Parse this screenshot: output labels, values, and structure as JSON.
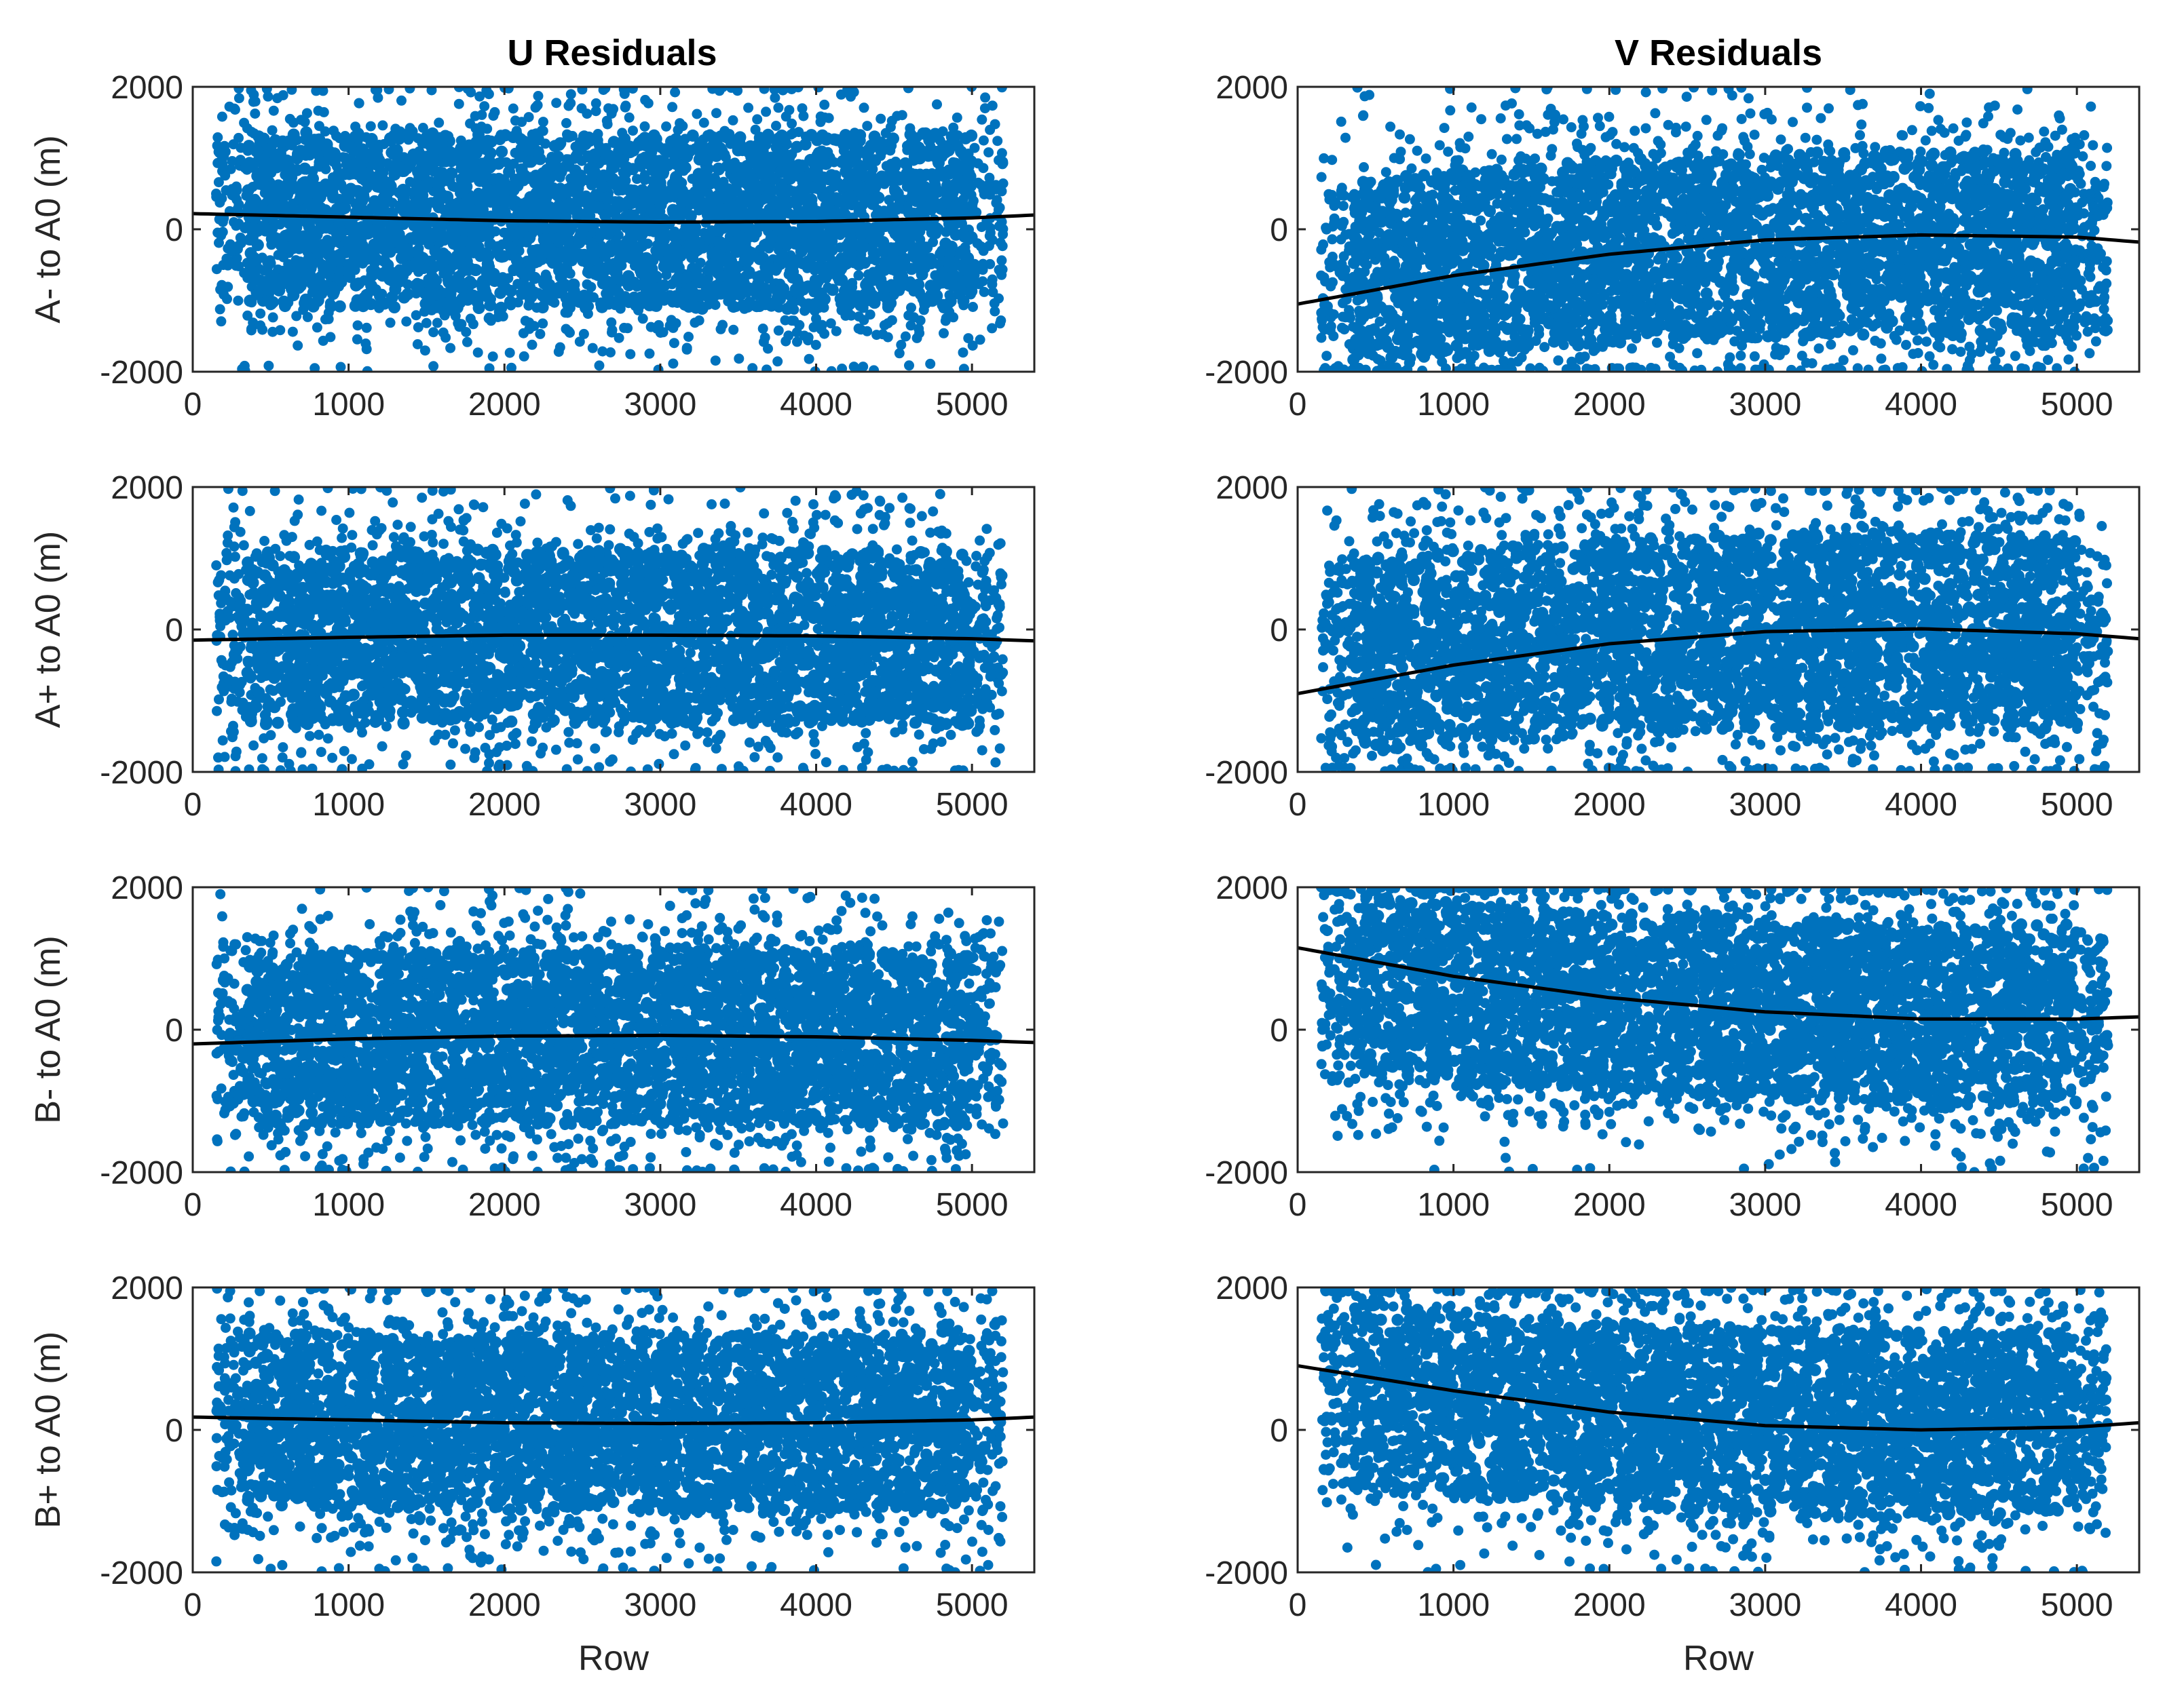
{
  "figure": {
    "col_titles": [
      "U Residuals",
      "V Residuals"
    ],
    "row_labels": [
      "A- to A0 (m)",
      "A+ to A0 (m)",
      "B- to A0 (m)",
      "B+ to A0 (m)"
    ],
    "xlabel": "Row"
  },
  "colors": {
    "points": "#0072BD",
    "fit_line": "#000000",
    "axes": "#262626"
  },
  "chart_data": [
    {
      "type": "scatter",
      "title": "U Residuals",
      "ylabel": "A- to A0 (m)",
      "xlabel": "",
      "xlim": [
        0,
        5400
      ],
      "ylim": [
        -2000,
        2000
      ],
      "xticks": [
        0,
        1000,
        2000,
        3000,
        4000,
        5000
      ],
      "yticks": [
        -2000,
        0,
        2000
      ],
      "x_range": [
        150,
        5200
      ],
      "scatter_band": {
        "center": 100,
        "half_width": 1750
      },
      "fit_line": {
        "x": [
          0,
          1000,
          2000,
          3000,
          4000,
          5000,
          5400
        ],
        "y": [
          220,
          170,
          120,
          100,
          110,
          160,
          200
        ]
      }
    },
    {
      "type": "scatter",
      "title": "V Residuals",
      "ylabel": "",
      "xlabel": "",
      "xlim": [
        0,
        5400
      ],
      "ylim": [
        -2000,
        2000
      ],
      "xticks": [
        0,
        1000,
        2000,
        3000,
        4000,
        5000
      ],
      "yticks": [
        -2000,
        0,
        2000
      ],
      "x_range": [
        150,
        5200
      ],
      "scatter_band": {
        "center": -300,
        "half_width": 1850
      },
      "fit_line": {
        "x": [
          0,
          1000,
          2000,
          3000,
          4000,
          5000,
          5400
        ],
        "y": [
          -1050,
          -650,
          -350,
          -150,
          -80,
          -110,
          -180
        ]
      }
    },
    {
      "type": "scatter",
      "title": "",
      "ylabel": "A+ to A0 (m)",
      "xlabel": "",
      "xlim": [
        0,
        5400
      ],
      "ylim": [
        -2000,
        2000
      ],
      "xticks": [
        0,
        1000,
        2000,
        3000,
        4000,
        5000
      ],
      "yticks": [
        -2000,
        0,
        2000
      ],
      "x_range": [
        150,
        5200
      ],
      "scatter_band": {
        "center": -100,
        "half_width": 1750
      },
      "fit_line": {
        "x": [
          0,
          1000,
          2000,
          3000,
          4000,
          5000,
          5400
        ],
        "y": [
          -150,
          -110,
          -80,
          -80,
          -90,
          -130,
          -160
        ]
      }
    },
    {
      "type": "scatter",
      "title": "",
      "ylabel": "",
      "xlabel": "",
      "xlim": [
        0,
        5400
      ],
      "ylim": [
        -2000,
        2000
      ],
      "xticks": [
        0,
        1000,
        2000,
        3000,
        4000,
        5000
      ],
      "yticks": [
        -2000,
        0,
        2000
      ],
      "x_range": [
        150,
        5200
      ],
      "scatter_band": {
        "center": 0,
        "half_width": 1950
      },
      "fit_line": {
        "x": [
          0,
          1000,
          2000,
          3000,
          4000,
          5000,
          5400
        ],
        "y": [
          -900,
          -500,
          -200,
          -30,
          10,
          -60,
          -130
        ]
      }
    },
    {
      "type": "scatter",
      "title": "",
      "ylabel": "B- to A0 (m)",
      "xlabel": "",
      "xlim": [
        0,
        5400
      ],
      "ylim": [
        -2000,
        2000
      ],
      "xticks": [
        0,
        1000,
        2000,
        3000,
        4000,
        5000
      ],
      "yticks": [
        -2000,
        0,
        2000
      ],
      "x_range": [
        150,
        5200
      ],
      "scatter_band": {
        "center": -100,
        "half_width": 1750
      },
      "fit_line": {
        "x": [
          0,
          1000,
          2000,
          3000,
          4000,
          5000,
          5400
        ],
        "y": [
          -200,
          -130,
          -90,
          -80,
          -100,
          -150,
          -180
        ]
      }
    },
    {
      "type": "scatter",
      "title": "",
      "ylabel": "",
      "xlabel": "",
      "xlim": [
        0,
        5400
      ],
      "ylim": [
        -2000,
        2000
      ],
      "xticks": [
        0,
        1000,
        2000,
        3000,
        4000,
        5000
      ],
      "yticks": [
        -2000,
        0,
        2000
      ],
      "x_range": [
        150,
        5200
      ],
      "scatter_band": {
        "center": 300,
        "half_width": 1800
      },
      "fit_line": {
        "x": [
          0,
          1000,
          2000,
          3000,
          4000,
          5000,
          5400
        ],
        "y": [
          1150,
          750,
          450,
          250,
          150,
          150,
          180
        ]
      }
    },
    {
      "type": "scatter",
      "title": "",
      "ylabel": "B+ to A0 (m)",
      "xlabel": "Row",
      "xlim": [
        0,
        5400
      ],
      "ylim": [
        -2000,
        2000
      ],
      "xticks": [
        0,
        1000,
        2000,
        3000,
        4000,
        5000
      ],
      "yticks": [
        -2000,
        0,
        2000
      ],
      "x_range": [
        150,
        5200
      ],
      "scatter_band": {
        "center": 100,
        "half_width": 1750
      },
      "fit_line": {
        "x": [
          0,
          1000,
          2000,
          3000,
          4000,
          5000,
          5400
        ],
        "y": [
          180,
          140,
          100,
          90,
          100,
          140,
          180
        ]
      }
    },
    {
      "type": "scatter",
      "title": "",
      "ylabel": "",
      "xlabel": "Row",
      "xlim": [
        0,
        5400
      ],
      "ylim": [
        -2000,
        2000
      ],
      "xticks": [
        0,
        1000,
        2000,
        3000,
        4000,
        5000
      ],
      "yticks": [
        -2000,
        0,
        2000
      ],
      "x_range": [
        150,
        5200
      ],
      "scatter_band": {
        "center": 200,
        "half_width": 1850
      },
      "fit_line": {
        "x": [
          0,
          1000,
          2000,
          3000,
          4000,
          5000,
          5400
        ],
        "y": [
          900,
          550,
          250,
          60,
          0,
          40,
          100
        ]
      }
    }
  ]
}
